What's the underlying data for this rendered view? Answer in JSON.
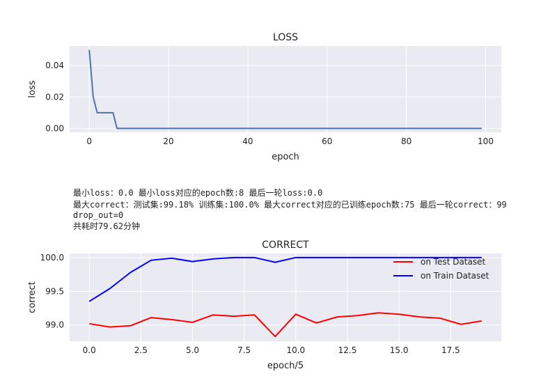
{
  "info": {
    "line1": "最小loss：0.0    最小loss对应的epoch数:8    最后一轮loss:0.0",
    "line2": "最大correct：测试集:99.18% 训练集:100.0%    最大correct对应的已训练epoch数:75    最后一轮correct：99",
    "line3": "drop_out=0",
    "line4": "共耗时79.62分钟"
  },
  "colors": {
    "axes_bg": "#eaeaf2",
    "grid": "#ffffff",
    "loss_line": "#4c72b0",
    "test_line": "#ff0000",
    "train_line": "#0000ff",
    "text": "#222222"
  },
  "chart_data": [
    {
      "type": "line",
      "title": "LOSS",
      "xlabel": "epoch",
      "ylabel": "loss",
      "xlim": [
        -4.95,
        103.95
      ],
      "ylim": [
        -0.0025,
        0.0525
      ],
      "xticks": [
        0,
        20,
        40,
        60,
        80,
        100
      ],
      "xtick_labels": [
        "0",
        "20",
        "40",
        "60",
        "80",
        "100"
      ],
      "yticks": [
        0.0,
        0.02,
        0.04
      ],
      "ytick_labels": [
        "0.00",
        "0.02",
        "0.04"
      ],
      "grid": true,
      "series": [
        {
          "color": "#4c72b0",
          "x": [
            0,
            1,
            2,
            3,
            4,
            5,
            6,
            7,
            8,
            9,
            10,
            11,
            12,
            13,
            14,
            15,
            16,
            17,
            18,
            19,
            20,
            21,
            22,
            23,
            24,
            25,
            26,
            27,
            28,
            29,
            30,
            31,
            32,
            33,
            34,
            35,
            36,
            37,
            38,
            39,
            40,
            41,
            42,
            43,
            44,
            45,
            46,
            47,
            48,
            49,
            50,
            51,
            52,
            53,
            54,
            55,
            56,
            57,
            58,
            59,
            60,
            61,
            62,
            63,
            64,
            65,
            66,
            67,
            68,
            69,
            70,
            71,
            72,
            73,
            74,
            75,
            76,
            77,
            78,
            79,
            80,
            81,
            82,
            83,
            84,
            85,
            86,
            87,
            88,
            89,
            90,
            91,
            92,
            93,
            94,
            95,
            96,
            97,
            98,
            99
          ],
          "values": [
            0.05,
            0.02,
            0.01,
            0.01,
            0.01,
            0.01,
            0.01,
            0.0,
            0.0,
            0.0,
            0.0,
            0.0,
            0.0,
            0.0,
            0.0,
            0.0,
            0.0,
            0.0,
            0.0,
            0.0,
            0.0,
            0.0,
            0.0,
            0.0,
            0.0,
            0.0,
            0.0,
            0.0,
            0.0,
            0.0,
            0.0,
            0.0,
            0.0,
            0.0,
            0.0,
            0.0,
            0.0,
            0.0,
            0.0,
            0.0,
            0.0,
            0.0,
            0.0,
            0.0,
            0.0,
            0.0,
            0.0,
            0.0,
            0.0,
            0.0,
            0.0,
            0.0,
            0.0,
            0.0,
            0.0,
            0.0,
            0.0,
            0.0,
            0.0,
            0.0,
            0.0,
            0.0,
            0.0,
            0.0,
            0.0,
            0.0,
            0.0,
            0.0,
            0.0,
            0.0,
            0.0,
            0.0,
            0.0,
            0.0,
            0.0,
            0.0,
            0.0,
            0.0,
            0.0,
            0.0,
            0.0,
            0.0,
            0.0,
            0.0,
            0.0,
            0.0,
            0.0,
            0.0,
            0.0,
            0.0,
            0.0,
            0.0,
            0.0,
            0.0,
            0.0,
            0.0,
            0.0,
            0.0,
            0.0,
            0.0
          ]
        }
      ]
    },
    {
      "type": "line",
      "title": "CORRECT",
      "xlabel": "epoch/5",
      "ylabel": "correct",
      "xlim": [
        -0.95,
        19.95
      ],
      "ylim": [
        98.76,
        100.06
      ],
      "xticks": [
        0,
        2.5,
        5,
        7.5,
        10,
        12.5,
        15,
        17.5
      ],
      "xtick_labels": [
        "0.0",
        "2.5",
        "5.0",
        "7.5",
        "10.0",
        "12.5",
        "15.0",
        "17.5"
      ],
      "yticks": [
        99.0,
        99.5,
        100.0
      ],
      "ytick_labels": [
        "99.0",
        "99.5",
        "100.0"
      ],
      "grid": true,
      "legend": "top-right",
      "series": [
        {
          "name": "on Test Dataset",
          "color": "#ff0000",
          "x": [
            0,
            1,
            2,
            3,
            4,
            5,
            6,
            7,
            8,
            9,
            10,
            11,
            12,
            13,
            14,
            15,
            16,
            17,
            18,
            19
          ],
          "values": [
            99.02,
            98.97,
            98.99,
            99.11,
            99.08,
            99.04,
            99.15,
            99.13,
            99.15,
            98.83,
            99.16,
            99.03,
            99.12,
            99.14,
            99.18,
            99.16,
            99.12,
            99.1,
            99.01,
            99.06
          ]
        },
        {
          "name": "on Train Dataset",
          "color": "#0000ff",
          "x": [
            0,
            1,
            2,
            3,
            4,
            5,
            6,
            7,
            8,
            9,
            10,
            11,
            12,
            13,
            14,
            15,
            16,
            17,
            18,
            19
          ],
          "values": [
            99.35,
            99.54,
            99.78,
            99.96,
            99.99,
            99.94,
            99.98,
            100.0,
            100.0,
            99.93,
            100.0,
            100.0,
            100.0,
            100.0,
            100.0,
            100.0,
            100.0,
            100.0,
            100.0,
            100.0
          ]
        }
      ]
    }
  ]
}
